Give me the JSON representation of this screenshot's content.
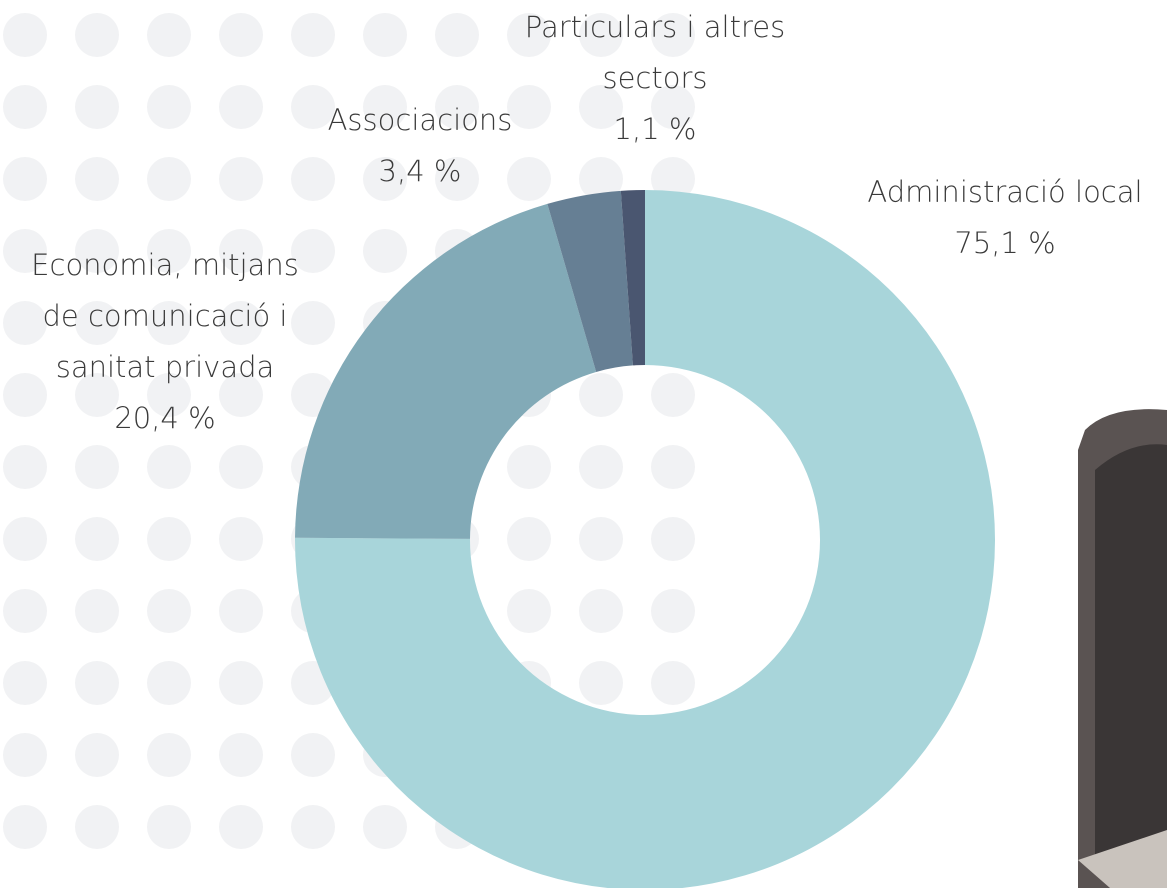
{
  "chart_data": {
    "type": "donut",
    "categories": [
      "Administració local",
      "Economia, mitjans de comunicació i sanitat privada",
      "Associacions",
      "Particulars i altres sectors"
    ],
    "values": [
      75.1,
      20.4,
      3.4,
      1.1
    ],
    "value_labels": [
      "75,1 %",
      "20,4 %",
      "3,4 %",
      "1,1 %"
    ],
    "colors": [
      "#a8d5da",
      "#82aab7",
      "#667f94",
      "#4a5670"
    ]
  }
}
